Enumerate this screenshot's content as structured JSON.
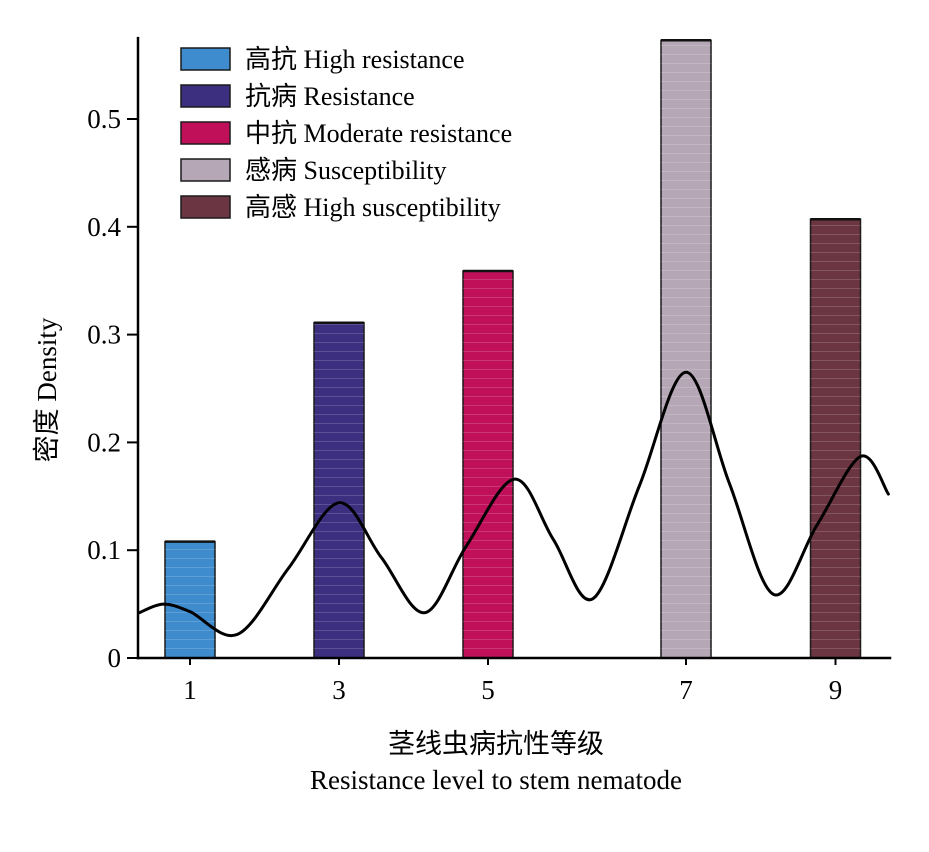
{
  "chart_data": {
    "type": "bar",
    "ylabel": "密度 Density",
    "xlabel": [
      "茎线虫病抗性等级",
      "Resistance level to stem nematode"
    ],
    "categories": [
      "1",
      "3",
      "5",
      "7",
      "9"
    ],
    "yticks": [
      0,
      0.1,
      0.2,
      0.3,
      0.4,
      0.5
    ],
    "ytick_labels": [
      "0",
      "0.1",
      "0.2",
      "0.3",
      "0.4",
      "0.5"
    ],
    "ylim": [
      0,
      0.575
    ],
    "grid": false,
    "legend_position": "top-left",
    "bars": [
      {
        "x": "1",
        "value": 0.108,
        "legend": "高抗 High resistance",
        "color": "#3e8ccd"
      },
      {
        "x": "3",
        "value": 0.311,
        "legend": "抗病 Resistance",
        "color": "#3c2f80"
      },
      {
        "x": "5",
        "value": 0.359,
        "legend": "中抗 Moderate resistance",
        "color": "#c0105a"
      },
      {
        "x": "7",
        "value": 0.573,
        "legend": "感病 Susceptibility",
        "color": "#b5a7b5"
      },
      {
        "x": "9",
        "value": 0.407,
        "legend": "高感 High susceptibility",
        "color": "#6b3541"
      }
    ],
    "overlay": {
      "type": "line",
      "smooth": true,
      "color": "#000000",
      "points": [
        [
          0.32,
          0.042
        ],
        [
          0.64,
          0.05
        ],
        [
          1.0,
          0.043
        ],
        [
          1.64,
          0.022
        ],
        [
          2.32,
          0.083
        ],
        [
          3.0,
          0.144
        ],
        [
          3.57,
          0.093
        ],
        [
          4.15,
          0.042
        ],
        [
          4.71,
          0.104
        ],
        [
          5.27,
          0.166
        ],
        [
          5.66,
          0.11
        ],
        [
          6.06,
          0.055
        ],
        [
          6.53,
          0.16
        ],
        [
          7.0,
          0.265
        ],
        [
          7.58,
          0.162
        ],
        [
          8.17,
          0.059
        ],
        [
          8.75,
          0.123
        ],
        [
          9.34,
          0.187
        ],
        [
          9.71,
          0.152
        ]
      ]
    }
  }
}
